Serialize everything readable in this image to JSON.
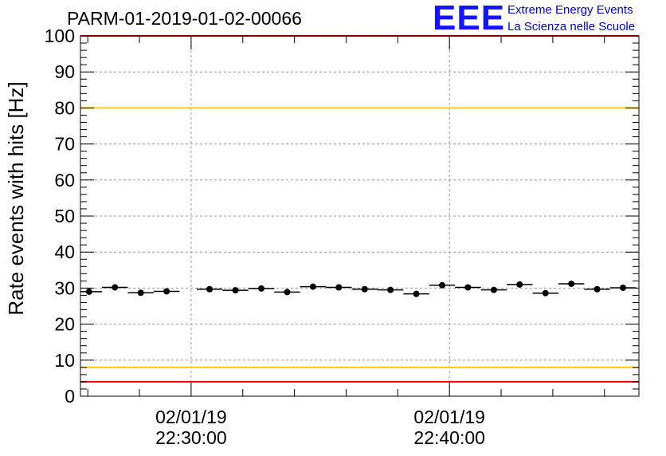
{
  "title": "PARM-01-2019-01-02-00066",
  "logo": {
    "mark": "EEE",
    "line1": "Extreme Energy Events",
    "line2": "La Scienza nelle Scuole"
  },
  "colors": {
    "limit_red": "#ff0000",
    "limit_yellow": "#ffcc00",
    "markers": "#000000",
    "grid": "#999999"
  },
  "chart_data": {
    "type": "scatter",
    "ylabel": "Rate events with hits [Hz]",
    "xlabel": "",
    "ylim": [
      0,
      100
    ],
    "y_ticks": [
      "0",
      "10",
      "20",
      "30",
      "40",
      "50",
      "60",
      "70",
      "80",
      "90",
      "100"
    ],
    "x_time_range": [
      "2019-01-02 22:25:43",
      "2019-01-02 22:47:20"
    ],
    "x_tick_labels": [
      {
        "time": "2019-01-02 22:30:00",
        "date": "02/01/19",
        "clock": "22:30:00"
      },
      {
        "time": "2019-01-02 22:40:00",
        "date": "02/01/19",
        "clock": "22:40:00"
      }
    ],
    "grid": true,
    "error_bars": "horizontal",
    "points": [
      {
        "time": "2019-01-02 22:26:03",
        "value": 29.0
      },
      {
        "time": "2019-01-02 22:27:03",
        "value": 30.2
      },
      {
        "time": "2019-01-02 22:28:03",
        "value": 28.7
      },
      {
        "time": "2019-01-02 22:29:03",
        "value": 29.1
      },
      {
        "time": "2019-01-02 22:30:43",
        "value": 29.7
      },
      {
        "time": "2019-01-02 22:31:43",
        "value": 29.4
      },
      {
        "time": "2019-01-02 22:32:43",
        "value": 29.9
      },
      {
        "time": "2019-01-02 22:33:43",
        "value": 28.9
      },
      {
        "time": "2019-01-02 22:34:43",
        "value": 30.4
      },
      {
        "time": "2019-01-02 22:35:43",
        "value": 30.2
      },
      {
        "time": "2019-01-02 22:36:43",
        "value": 29.7
      },
      {
        "time": "2019-01-02 22:37:43",
        "value": 29.5
      },
      {
        "time": "2019-01-02 22:38:43",
        "value": 28.4
      },
      {
        "time": "2019-01-02 22:39:43",
        "value": 30.8
      },
      {
        "time": "2019-01-02 22:40:43",
        "value": 30.2
      },
      {
        "time": "2019-01-02 22:41:43",
        "value": 29.5
      },
      {
        "time": "2019-01-02 22:42:43",
        "value": 31.0
      },
      {
        "time": "2019-01-02 22:43:43",
        "value": 28.6
      },
      {
        "time": "2019-01-02 22:44:43",
        "value": 31.2
      },
      {
        "time": "2019-01-02 22:45:43",
        "value": 29.7
      },
      {
        "time": "2019-01-02 22:46:43",
        "value": 30.1
      }
    ],
    "reference_lines": [
      {
        "value": 4,
        "color": "#ff0000"
      },
      {
        "value": 8,
        "color": "#ffcc00"
      },
      {
        "value": 80,
        "color": "#ffcc00"
      },
      {
        "value": 100,
        "color": "#ff0000"
      }
    ]
  }
}
